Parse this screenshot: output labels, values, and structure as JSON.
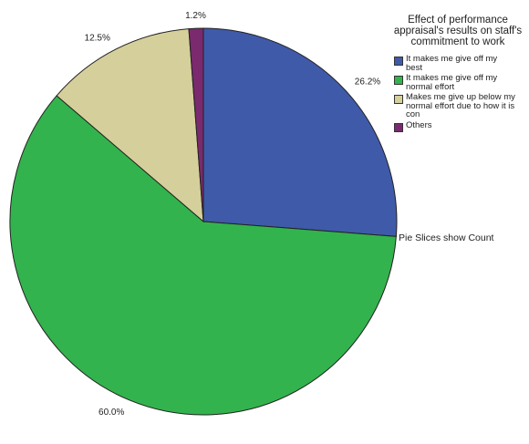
{
  "chart_data": {
    "type": "pie",
    "title": "",
    "legend_title": "Effect of performance appraisal's results on staff's commitment to work",
    "legend_position": "top-right",
    "note": "Pie Slices show Count",
    "slices": [
      {
        "label": "It makes me give off my best",
        "value": 26.2,
        "display": "26.2%",
        "color": "#3f5aa8"
      },
      {
        "label": "It makes me give off my normal effort",
        "value": 60.0,
        "display": "60.0%",
        "color": "#33b34d"
      },
      {
        "label": "Makes me give up below my normal effort due to how it is con",
        "value": 12.5,
        "display": "12.5%",
        "color": "#d5d09b"
      },
      {
        "label": "Others",
        "value": 1.2,
        "display": "1.2%",
        "color": "#7b2a6f"
      }
    ]
  }
}
